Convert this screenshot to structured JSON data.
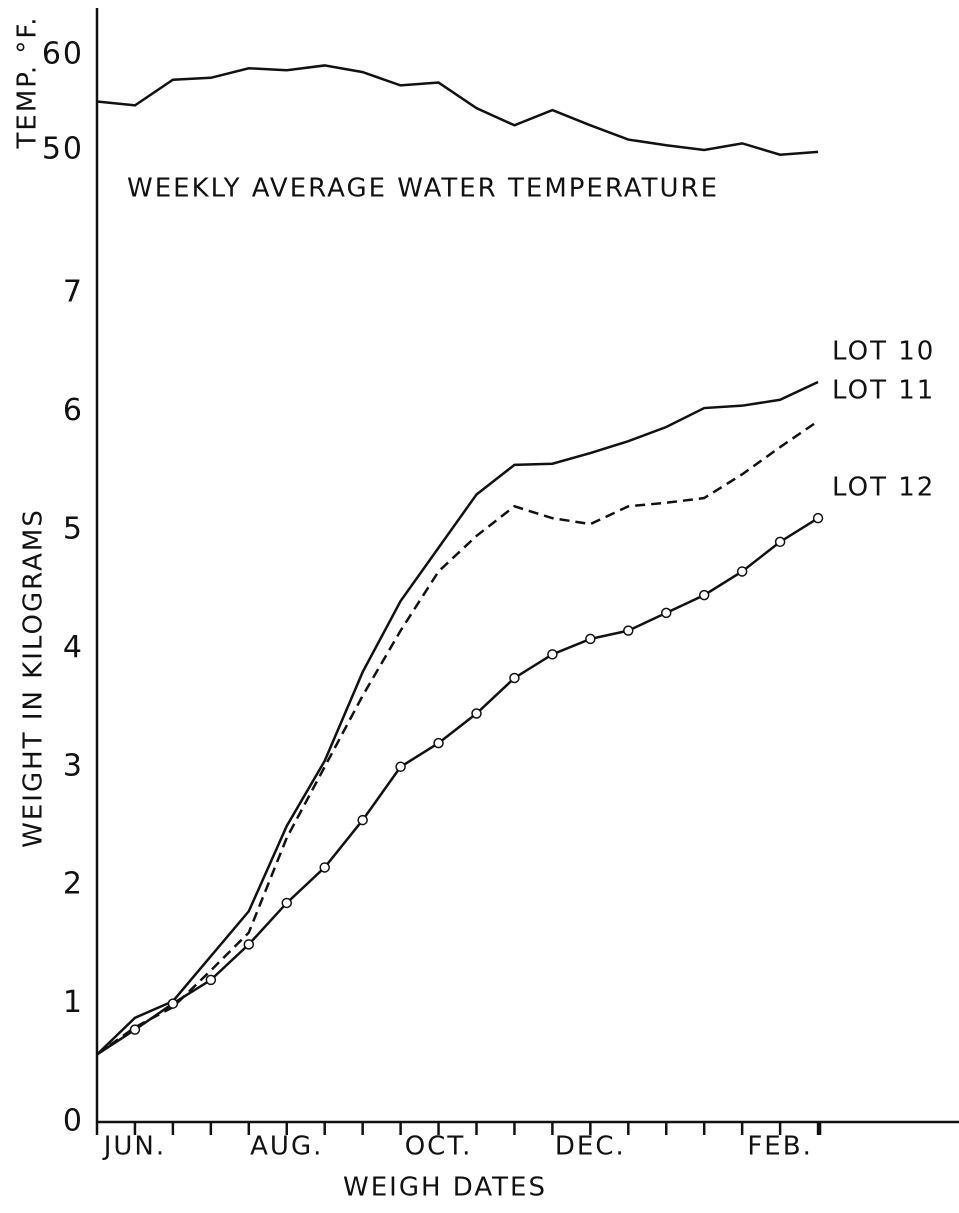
{
  "chart_data": [
    {
      "type": "line",
      "annotation": "WEEKLY AVERAGE WATER TEMPERATURE",
      "y_label": "TEMP. °F.",
      "ylim": [
        46,
        64
      ],
      "yticks": [
        50,
        60
      ],
      "series": [
        {
          "name": null,
          "color": "#111111",
          "style": "solid",
          "values": [
            55.1,
            54.7,
            57.4,
            57.6,
            58.6,
            58.4,
            58.9,
            58.2,
            56.8,
            57.1,
            54.4,
            52.6,
            54.2,
            52.6,
            51.1,
            50.5,
            50.0,
            50.7,
            49.5,
            49.8
          ]
        }
      ]
    },
    {
      "type": "line",
      "x_label": "WEIGH DATES",
      "y_label": "WEIGHT IN KILOGRAMS",
      "categories": [
        null,
        "JUN.",
        null,
        null,
        null,
        "AUG.",
        null,
        null,
        null,
        "OCT.",
        null,
        null,
        null,
        "DEC.",
        null,
        null,
        null,
        null,
        "FEB.",
        null
      ],
      "ylim": [
        0,
        7.5
      ],
      "yticks": [
        0,
        1,
        2,
        3,
        4,
        5,
        6,
        7
      ],
      "series": [
        {
          "name": "LOT 10",
          "color": "#111111",
          "style": "solid",
          "values": [
            0.57,
            0.88,
            1.02,
            1.4,
            1.78,
            2.5,
            3.05,
            3.8,
            4.4,
            4.85,
            5.3,
            5.55,
            5.56,
            5.65,
            5.75,
            5.87,
            6.03,
            6.05,
            6.1,
            6.25
          ]
        },
        {
          "name": "LOT 11",
          "color": "#111111",
          "style": "dashed",
          "values": [
            0.57,
            0.8,
            0.97,
            1.28,
            1.6,
            2.4,
            3.0,
            3.6,
            4.15,
            4.65,
            4.95,
            5.2,
            5.1,
            5.05,
            5.2,
            5.23,
            5.27,
            5.47,
            5.7,
            5.92
          ]
        },
        {
          "name": "LOT 12",
          "color": "#111111",
          "style": "solid",
          "marker": "circle",
          "values": [
            0.57,
            0.78,
            1.0,
            1.2,
            1.5,
            1.85,
            2.15,
            2.55,
            3.0,
            3.2,
            3.45,
            3.75,
            3.95,
            4.08,
            4.15,
            4.3,
            4.45,
            4.65,
            4.9,
            5.1
          ]
        }
      ]
    }
  ]
}
